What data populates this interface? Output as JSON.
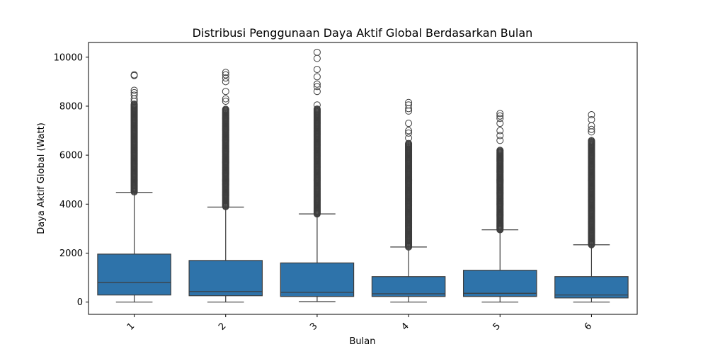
{
  "chart_data": {
    "type": "box",
    "title": "Distribusi Penggunaan Daya Aktif Global Berdasarkan Bulan",
    "xlabel": "Bulan",
    "ylabel": "Daya Aktif Global (Watt)",
    "categories": [
      "1",
      "2",
      "3",
      "4",
      "5",
      "6"
    ],
    "ylim": [
      -500,
      10600
    ],
    "yticks": [
      0,
      2000,
      4000,
      6000,
      8000,
      10000
    ],
    "color": "#2e73aa",
    "boxes": [
      {
        "category": "1",
        "whisker_low": 0,
        "q1": 290,
        "median": 800,
        "q3": 1960,
        "whisker_high": 4480,
        "outlier_min": 4500,
        "outlier_max": 8100,
        "outliers_sparse": [
          8200,
          8300,
          8450,
          8550,
          8650,
          9250,
          9280
        ]
      },
      {
        "category": "2",
        "whisker_low": 0,
        "q1": 260,
        "median": 430,
        "q3": 1700,
        "whisker_high": 3880,
        "outlier_min": 3900,
        "outlier_max": 7900,
        "outliers_sparse": [
          8200,
          8300,
          8600,
          9000,
          9150,
          9280,
          9380
        ]
      },
      {
        "category": "3",
        "whisker_low": 20,
        "q1": 230,
        "median": 400,
        "q3": 1600,
        "whisker_high": 3600,
        "outlier_min": 3600,
        "outlier_max": 7900,
        "outliers_sparse": [
          8050,
          8600,
          8800,
          8900,
          9200,
          9500,
          9950,
          10200
        ]
      },
      {
        "category": "4",
        "whisker_low": 0,
        "q1": 230,
        "median": 340,
        "q3": 1040,
        "whisker_high": 2250,
        "outlier_min": 2250,
        "outlier_max": 6500,
        "outliers_sparse": [
          6700,
          6900,
          7000,
          7300,
          7800,
          7900,
          8050,
          8150
        ]
      },
      {
        "category": "5",
        "whisker_low": 0,
        "q1": 230,
        "median": 360,
        "q3": 1300,
        "whisker_high": 2950,
        "outlier_min": 2950,
        "outlier_max": 6200,
        "outliers_sparse": [
          6600,
          6800,
          7000,
          7300,
          7500,
          7600,
          7700
        ]
      },
      {
        "category": "6",
        "whisker_low": 0,
        "q1": 170,
        "median": 290,
        "q3": 1040,
        "whisker_high": 2340,
        "outlier_min": 2340,
        "outlier_max": 6600,
        "outliers_sparse": [
          6950,
          7050,
          7200,
          7450,
          7650
        ]
      }
    ]
  }
}
